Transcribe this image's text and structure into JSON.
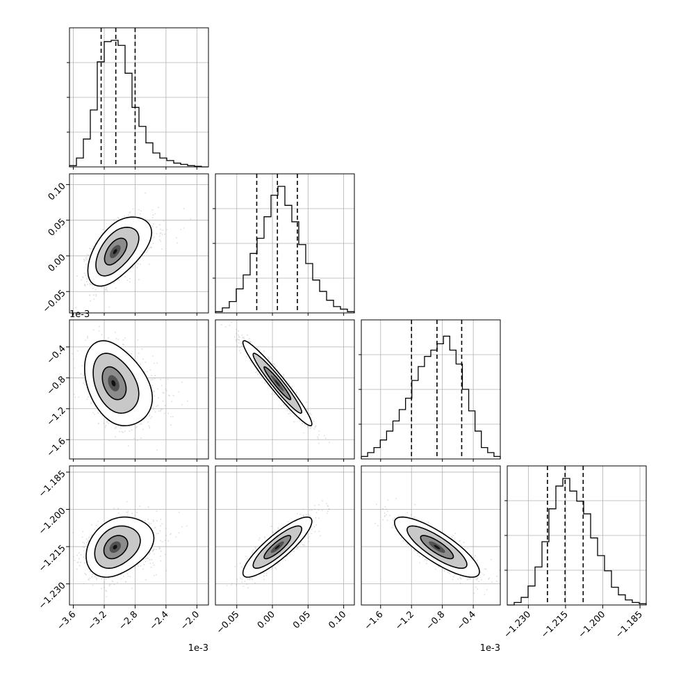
{
  "chart_data": {
    "type": "corner",
    "parameters": [
      {
        "range": [
          -3.65,
          -1.85
        ],
        "ticks": [
          -3.6,
          -3.2,
          -2.8,
          -2.4,
          -2.0
        ],
        "tick_labels": [
          "−3.6",
          "−3.2",
          "−2.8",
          "−2.4",
          "−2.0"
        ],
        "offset_label": "1e-3",
        "quantiles": [
          -3.24,
          -3.05,
          -2.8
        ],
        "histogram": [
          0.01,
          0.07,
          0.22,
          0.45,
          0.83,
          0.99,
          1.0,
          0.96,
          0.74,
          0.47,
          0.32,
          0.19,
          0.11,
          0.07,
          0.05,
          0.03,
          0.02,
          0.01,
          0.005,
          0.0
        ]
      },
      {
        "range": [
          -0.08,
          0.115
        ],
        "ticks": [
          -0.05,
          0.0,
          0.05,
          0.1
        ],
        "tick_labels": [
          "−0.05",
          "0.00",
          "0.05",
          "0.10"
        ],
        "offset_label": "",
        "quantiles": [
          -0.022,
          0.007,
          0.035
        ],
        "histogram": [
          0.01,
          0.04,
          0.09,
          0.19,
          0.3,
          0.47,
          0.59,
          0.76,
          0.93,
          1.0,
          0.85,
          0.72,
          0.54,
          0.39,
          0.26,
          0.17,
          0.1,
          0.05,
          0.03,
          0.01
        ]
      },
      {
        "range": [
          -1.85,
          -0.05
        ],
        "ticks": [
          -1.6,
          -1.2,
          -0.8,
          -0.4
        ],
        "tick_labels": [
          "−1.6",
          "−1.2",
          "−0.8",
          "−0.4"
        ],
        "offset_label": "1e-3",
        "quantiles": [
          -1.2,
          -0.87,
          -0.55
        ],
        "histogram": [
          0.02,
          0.05,
          0.09,
          0.15,
          0.22,
          0.3,
          0.39,
          0.48,
          0.62,
          0.73,
          0.81,
          0.86,
          0.91,
          0.97,
          0.86,
          0.75,
          0.55,
          0.38,
          0.22,
          0.09,
          0.05,
          0.02
        ]
      },
      {
        "range": [
          -1.2385,
          -1.1825
        ],
        "ticks": [
          -1.23,
          -1.215,
          -1.2,
          -1.185
        ],
        "tick_labels": [
          "−1.230",
          "−1.215",
          "−1.200",
          "−1.185"
        ],
        "offset_label": "",
        "quantiles": [
          -1.2223,
          -1.2152,
          -1.2079
        ],
        "histogram": [
          0.0,
          0.02,
          0.06,
          0.15,
          0.3,
          0.5,
          0.76,
          0.94,
          1.0,
          0.9,
          0.82,
          0.72,
          0.53,
          0.39,
          0.27,
          0.14,
          0.08,
          0.04,
          0.02,
          0.01
        ]
      }
    ],
    "pairs": [
      {
        "row": 1,
        "col": 0,
        "center": [
          -3.06,
          0.006
        ],
        "sd": [
          0.16,
          0.022
        ],
        "corr": 0.55,
        "skew": [
          0.35,
          0.0
        ]
      },
      {
        "row": 2,
        "col": 0,
        "center": [
          -3.08,
          -0.87
        ],
        "sd": [
          0.17,
          0.25
        ],
        "corr": -0.35,
        "skew": [
          0.35,
          0.0
        ]
      },
      {
        "row": 2,
        "col": 1,
        "center": [
          0.007,
          -0.87
        ],
        "sd": [
          0.022,
          0.25
        ],
        "corr": -0.96,
        "skew": [
          0.0,
          0.0
        ]
      },
      {
        "row": 3,
        "col": 0,
        "center": [
          -3.06,
          -1.2152
        ],
        "sd": [
          0.17,
          0.0055
        ],
        "corr": 0.3,
        "skew": [
          0.35,
          0.0
        ]
      },
      {
        "row": 3,
        "col": 1,
        "center": [
          0.007,
          -1.2152
        ],
        "sd": [
          0.022,
          0.0055
        ],
        "corr": 0.86,
        "skew": [
          0.0,
          0.0
        ]
      },
      {
        "row": 3,
        "col": 2,
        "center": [
          -0.87,
          -1.2152
        ],
        "sd": [
          0.25,
          0.0055
        ],
        "corr": -0.82,
        "skew": [
          0.0,
          0.0
        ]
      }
    ],
    "grid": true
  }
}
